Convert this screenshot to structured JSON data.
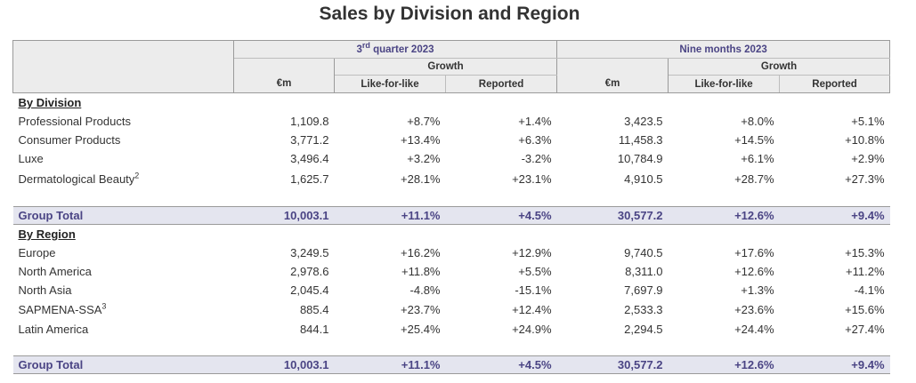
{
  "title": "Sales by Division and Region",
  "headers": {
    "q3": "3rd quarter 2023",
    "q3_sup": "rd",
    "q3_pre": "3",
    "q3_post": " quarter 2023",
    "nine": "Nine months 2023",
    "growth": "Growth",
    "em": "€m",
    "lfl": "Like-for-like",
    "reported": "Reported"
  },
  "division": {
    "heading": "By Division",
    "rows": [
      {
        "label": "Professional Products",
        "sup": "",
        "q3_em": "1,109.8",
        "q3_lfl": "+8.7%",
        "q3_rep": "+1.4%",
        "nm_em": "3,423.5",
        "nm_lfl": "+8.0%",
        "nm_rep": "+5.1%"
      },
      {
        "label": "Consumer Products",
        "sup": "",
        "q3_em": "3,771.2",
        "q3_lfl": "+13.4%",
        "q3_rep": "+6.3%",
        "nm_em": "11,458.3",
        "nm_lfl": "+14.5%",
        "nm_rep": "+10.8%"
      },
      {
        "label": "Luxe",
        "sup": "",
        "q3_em": "3,496.4",
        "q3_lfl": "+3.2%",
        "q3_rep": "-3.2%",
        "nm_em": "10,784.9",
        "nm_lfl": "+6.1%",
        "nm_rep": "+2.9%"
      },
      {
        "label": "Dermatological Beauty",
        "sup": "2",
        "q3_em": "1,625.7",
        "q3_lfl": "+28.1%",
        "q3_rep": "+23.1%",
        "nm_em": "4,910.5",
        "nm_lfl": "+28.7%",
        "nm_rep": "+27.3%"
      }
    ],
    "total": {
      "label": "Group Total",
      "q3_em": "10,003.1",
      "q3_lfl": "+11.1%",
      "q3_rep": "+4.5%",
      "nm_em": "30,577.2",
      "nm_lfl": "+12.6%",
      "nm_rep": "+9.4%"
    }
  },
  "region": {
    "heading": "By Region",
    "rows": [
      {
        "label": "Europe",
        "sup": "",
        "q3_em": "3,249.5",
        "q3_lfl": "+16.2%",
        "q3_rep": "+12.9%",
        "nm_em": "9,740.5",
        "nm_lfl": "+17.6%",
        "nm_rep": "+15.3%"
      },
      {
        "label": "North America",
        "sup": "",
        "q3_em": "2,978.6",
        "q3_lfl": "+11.8%",
        "q3_rep": "+5.5%",
        "nm_em": "8,311.0",
        "nm_lfl": "+12.6%",
        "nm_rep": "+11.2%"
      },
      {
        "label": "North Asia",
        "sup": "",
        "q3_em": "2,045.4",
        "q3_lfl": "-4.8%",
        "q3_rep": "-15.1%",
        "nm_em": "7,697.9",
        "nm_lfl": "+1.3%",
        "nm_rep": "-4.1%"
      },
      {
        "label": "SAPMENA-SSA",
        "sup": "3",
        "q3_em": "885.4",
        "q3_lfl": "+23.7%",
        "q3_rep": "+12.4%",
        "nm_em": "2,533.3",
        "nm_lfl": "+23.6%",
        "nm_rep": "+15.6%"
      },
      {
        "label": "Latin America",
        "sup": "",
        "q3_em": "844.1",
        "q3_lfl": "+25.4%",
        "q3_rep": "+24.9%",
        "nm_em": "2,294.5",
        "nm_lfl": "+24.4%",
        "nm_rep": "+27.4%"
      }
    ],
    "total": {
      "label": "Group Total",
      "q3_em": "10,003.1",
      "q3_lfl": "+11.1%",
      "q3_rep": "+4.5%",
      "nm_em": "30,577.2",
      "nm_lfl": "+12.6%",
      "nm_rep": "+9.4%"
    }
  },
  "colors": {
    "accent": "#4a4484",
    "total_bg": "#e4e5ef",
    "header_bg": "#ececec"
  }
}
